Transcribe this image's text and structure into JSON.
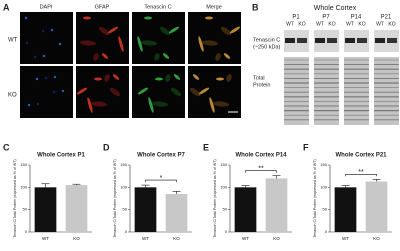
{
  "panel_a": {
    "letter": "A",
    "columns": [
      "DAPI",
      "GFAP",
      "Tenascin C",
      "Merge"
    ],
    "rows": [
      "WT",
      "KO"
    ]
  },
  "panel_b": {
    "letter": "B",
    "title": "Whole Cortex",
    "ages": [
      "P1",
      "P7",
      "P14",
      "P21"
    ],
    "genotypes": [
      "WT",
      "KO"
    ],
    "band_label": "Tenascin C",
    "band_size": "(~250 kDa)",
    "total_label": [
      "Total",
      "Protein"
    ]
  },
  "chart_data": [
    {
      "type": "bar",
      "panel": "C",
      "title": "Whole Cortex P1",
      "categories": [
        "WT",
        "KO"
      ],
      "values": [
        100,
        105
      ],
      "errors": [
        8,
        2
      ],
      "colors": [
        "#111111",
        "#c8c8c8"
      ],
      "ylabel": "Tenascin C/Total Protein (expressed as % of WT)",
      "ylim": [
        0,
        150
      ],
      "yticks": [
        0,
        50,
        100,
        150
      ]
    },
    {
      "type": "bar",
      "panel": "D",
      "title": "Whole Cortex P7",
      "categories": [
        "WT",
        "KO"
      ],
      "values": [
        100,
        85
      ],
      "errors": [
        5,
        6
      ],
      "colors": [
        "#111111",
        "#c8c8c8"
      ],
      "ylabel": "Tenascin C/Total Protein (expressed as % of WT)",
      "ylim": [
        0,
        150
      ],
      "yticks": [
        0,
        50,
        100,
        150
      ],
      "annotation": "*"
    },
    {
      "type": "bar",
      "panel": "E",
      "title": "Whole Cortex P14",
      "categories": [
        "WT",
        "KO"
      ],
      "values": [
        100,
        120
      ],
      "errors": [
        4,
        6
      ],
      "colors": [
        "#111111",
        "#c8c8c8"
      ],
      "ylabel": "Tenascin C/Total Protein (expressed as % of WT)",
      "ylim": [
        0,
        150
      ],
      "yticks": [
        0,
        50,
        100,
        150
      ],
      "annotation": "**"
    },
    {
      "type": "bar",
      "panel": "F",
      "title": "Whole Cortex P21",
      "categories": [
        "WT",
        "KO"
      ],
      "values": [
        100,
        113
      ],
      "errors": [
        4,
        5
      ],
      "colors": [
        "#111111",
        "#c8c8c8"
      ],
      "ylabel": "Tenascin C/Total Protein (expressed as % of WT)",
      "ylim": [
        0,
        150
      ],
      "yticks": [
        0,
        50,
        100,
        150
      ],
      "annotation": "**"
    }
  ]
}
